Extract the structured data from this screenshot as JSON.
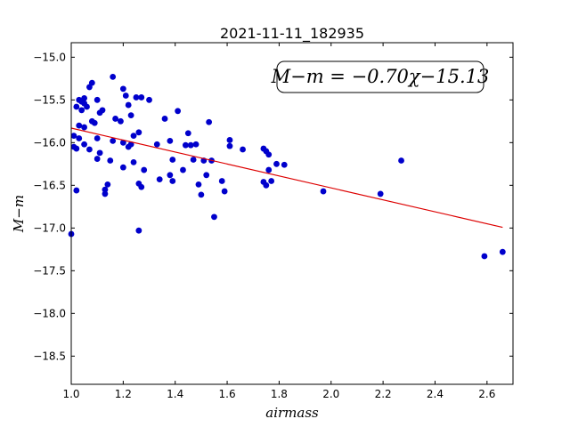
{
  "chart_data": {
    "type": "scatter",
    "title": "2021-11-11_182935",
    "xlabel": "airmass",
    "ylabel": "M−m",
    "xlim": [
      1.0,
      2.7
    ],
    "ylim": [
      -18.83,
      -14.83
    ],
    "y_inverted": true,
    "xticks": [
      1.0,
      1.2,
      1.4,
      1.6,
      1.8,
      2.0,
      2.2,
      2.4,
      2.6
    ],
    "xtick_labels": [
      "1.0",
      "1.2",
      "1.4",
      "1.6",
      "1.8",
      "2.0",
      "2.2",
      "2.4",
      "2.6"
    ],
    "yticks": [
      -15.0,
      -15.5,
      -16.0,
      -16.5,
      -17.0,
      -17.5,
      -18.0,
      -18.5
    ],
    "ytick_labels": [
      "−15.0",
      "−15.5",
      "−16.0",
      "−16.5",
      "−17.0",
      "−17.5",
      "−18.0",
      "−18.5"
    ],
    "grid": false,
    "annotation": "M−m = −0.70χ−15.13",
    "fit": {
      "slope": -0.7,
      "intercept": -15.13,
      "x_range": [
        1.0,
        2.66
      ],
      "color": "#dd0000"
    },
    "marker_color": "#0000cc",
    "points": [
      [
        1.0,
        -17.07
      ],
      [
        1.01,
        -15.92
      ],
      [
        1.01,
        -16.05
      ],
      [
        1.02,
        -15.58
      ],
      [
        1.02,
        -16.07
      ],
      [
        1.02,
        -16.56
      ],
      [
        1.03,
        -15.5
      ],
      [
        1.03,
        -15.8
      ],
      [
        1.03,
        -15.95
      ],
      [
        1.04,
        -15.52
      ],
      [
        1.04,
        -15.62
      ],
      [
        1.05,
        -15.48
      ],
      [
        1.05,
        -15.54
      ],
      [
        1.05,
        -15.82
      ],
      [
        1.05,
        -16.02
      ],
      [
        1.06,
        -15.58
      ],
      [
        1.07,
        -15.35
      ],
      [
        1.07,
        -16.08
      ],
      [
        1.08,
        -15.3
      ],
      [
        1.08,
        -15.75
      ],
      [
        1.09,
        -15.77
      ],
      [
        1.1,
        -15.5
      ],
      [
        1.1,
        -15.95
      ],
      [
        1.1,
        -16.19
      ],
      [
        1.11,
        -15.65
      ],
      [
        1.11,
        -16.12
      ],
      [
        1.12,
        -15.62
      ],
      [
        1.13,
        -16.55
      ],
      [
        1.13,
        -16.6
      ],
      [
        1.14,
        -16.49
      ],
      [
        1.15,
        -16.21
      ],
      [
        1.16,
        -15.23
      ],
      [
        1.16,
        -15.98
      ],
      [
        1.17,
        -15.72
      ],
      [
        1.19,
        -15.75
      ],
      [
        1.2,
        -15.37
      ],
      [
        1.2,
        -16.0
      ],
      [
        1.2,
        -16.29
      ],
      [
        1.21,
        -15.45
      ],
      [
        1.22,
        -15.56
      ],
      [
        1.22,
        -16.05
      ],
      [
        1.23,
        -15.68
      ],
      [
        1.23,
        -16.02
      ],
      [
        1.24,
        -15.92
      ],
      [
        1.24,
        -16.23
      ],
      [
        1.25,
        -15.47
      ],
      [
        1.26,
        -15.88
      ],
      [
        1.26,
        -16.48
      ],
      [
        1.27,
        -15.47
      ],
      [
        1.27,
        -16.52
      ],
      [
        1.26,
        -17.03
      ],
      [
        1.28,
        -16.32
      ],
      [
        1.3,
        -15.5
      ],
      [
        1.33,
        -16.02
      ],
      [
        1.34,
        -16.43
      ],
      [
        1.36,
        -15.72
      ],
      [
        1.38,
        -15.98
      ],
      [
        1.38,
        -16.38
      ],
      [
        1.39,
        -16.2
      ],
      [
        1.39,
        -16.45
      ],
      [
        1.41,
        -15.63
      ],
      [
        1.43,
        -16.32
      ],
      [
        1.44,
        -16.03
      ],
      [
        1.45,
        -15.89
      ],
      [
        1.46,
        -16.03
      ],
      [
        1.47,
        -16.2
      ],
      [
        1.48,
        -16.02
      ],
      [
        1.49,
        -16.49
      ],
      [
        1.5,
        -16.61
      ],
      [
        1.51,
        -16.21
      ],
      [
        1.52,
        -16.38
      ],
      [
        1.53,
        -15.76
      ],
      [
        1.54,
        -16.21
      ],
      [
        1.55,
        -16.87
      ],
      [
        1.58,
        -16.45
      ],
      [
        1.59,
        -16.57
      ],
      [
        1.61,
        -15.97
      ],
      [
        1.61,
        -16.04
      ],
      [
        1.66,
        -16.08
      ],
      [
        1.74,
        -16.07
      ],
      [
        1.74,
        -16.46
      ],
      [
        1.75,
        -16.5
      ],
      [
        1.75,
        -16.1
      ],
      [
        1.76,
        -16.14
      ],
      [
        1.76,
        -16.32
      ],
      [
        1.77,
        -16.45
      ],
      [
        1.79,
        -16.25
      ],
      [
        1.82,
        -16.26
      ],
      [
        1.97,
        -16.57
      ],
      [
        2.19,
        -16.6
      ],
      [
        2.27,
        -16.21
      ],
      [
        2.59,
        -17.33
      ],
      [
        2.66,
        -17.28
      ]
    ]
  }
}
